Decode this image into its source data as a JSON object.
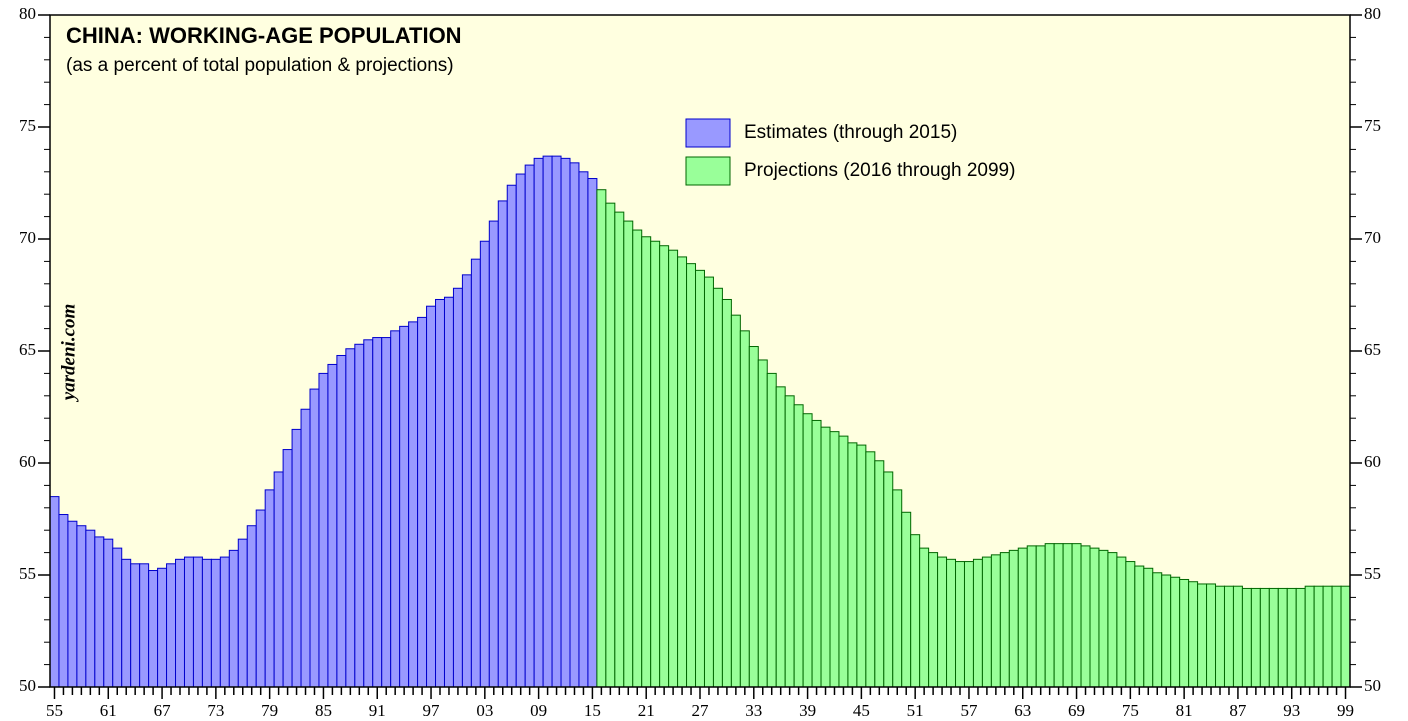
{
  "chart_data": {
    "type": "bar",
    "title": "CHINA: WORKING-AGE POPULATION",
    "subtitle": "(as a percent of total population & projections)",
    "annotation": "yardeni.com",
    "legend": "top-center",
    "categories": [
      "55",
      null,
      null,
      null,
      null,
      null,
      "61",
      null,
      null,
      null,
      null,
      null,
      "67",
      null,
      null,
      null,
      null,
      null,
      "73",
      null,
      null,
      null,
      null,
      null,
      "79",
      null,
      null,
      null,
      null,
      null,
      "85",
      null,
      null,
      null,
      null,
      null,
      "91",
      null,
      null,
      null,
      null,
      null,
      "97",
      null,
      null,
      null,
      null,
      null,
      "03",
      null,
      null,
      null,
      null,
      null,
      "09",
      null,
      null,
      null,
      null,
      null,
      "15",
      null,
      null,
      null,
      null,
      null,
      "21",
      null,
      null,
      null,
      null,
      null,
      "27",
      null,
      null,
      null,
      null,
      null,
      "33",
      null,
      null,
      null,
      null,
      null,
      "39",
      null,
      null,
      null,
      null,
      null,
      "45",
      null,
      null,
      null,
      null,
      null,
      "51",
      null,
      null,
      null,
      null,
      null,
      "57",
      null,
      null,
      null,
      null,
      null,
      "63",
      null,
      null,
      null,
      null,
      null,
      "69",
      null,
      null,
      null,
      null,
      null,
      "75",
      null,
      null,
      null,
      null,
      null,
      "81",
      null,
      null,
      null,
      null,
      null,
      "87",
      null,
      null,
      null,
      null,
      null,
      "93",
      null,
      null,
      null,
      null,
      null,
      "99"
    ],
    "series": [
      {
        "name": "Estimates (through 2015)",
        "color": "#9999ff",
        "stroke": "#0000cc",
        "values": [
          58.5,
          57.7,
          57.4,
          57.2,
          57.0,
          56.7,
          56.6,
          56.2,
          55.7,
          55.5,
          55.5,
          55.2,
          55.3,
          55.5,
          55.7,
          55.8,
          55.8,
          55.7,
          55.7,
          55.8,
          56.1,
          56.6,
          57.2,
          57.9,
          58.8,
          59.6,
          60.6,
          61.5,
          62.4,
          63.3,
          64.0,
          64.4,
          64.8,
          65.1,
          65.3,
          65.5,
          65.6,
          65.6,
          65.9,
          66.1,
          66.3,
          66.5,
          67.0,
          67.3,
          67.4,
          67.8,
          68.4,
          69.1,
          69.9,
          70.8,
          71.7,
          72.4,
          72.9,
          73.3,
          73.6,
          73.7,
          73.7,
          73.6,
          73.4,
          73.0,
          72.7,
          null,
          null,
          null,
          null,
          null,
          null,
          null,
          null,
          null,
          null,
          null,
          null,
          null,
          null,
          null,
          null,
          null,
          null,
          null,
          null,
          null,
          null,
          null,
          null,
          null,
          null,
          null,
          null,
          null,
          null,
          null,
          null,
          null,
          null,
          null,
          null,
          null,
          null,
          null,
          null,
          null,
          null,
          null,
          null,
          null,
          null,
          null,
          null,
          null,
          null,
          null,
          null,
          null,
          null,
          null,
          null,
          null,
          null,
          null,
          null,
          null,
          null,
          null,
          null,
          null,
          null,
          null,
          null,
          null,
          null,
          null,
          null,
          null,
          null,
          null,
          null,
          null,
          null,
          null,
          null,
          null,
          null,
          null,
          null
        ]
      },
      {
        "name": "Projections (2016 through 2099)",
        "color": "#99ff99",
        "stroke": "#006600",
        "values": [
          null,
          null,
          null,
          null,
          null,
          null,
          null,
          null,
          null,
          null,
          null,
          null,
          null,
          null,
          null,
          null,
          null,
          null,
          null,
          null,
          null,
          null,
          null,
          null,
          null,
          null,
          null,
          null,
          null,
          null,
          null,
          null,
          null,
          null,
          null,
          null,
          null,
          null,
          null,
          null,
          null,
          null,
          null,
          null,
          null,
          null,
          null,
          null,
          null,
          null,
          null,
          null,
          null,
          null,
          null,
          null,
          null,
          null,
          null,
          null,
          null,
          72.2,
          71.6,
          71.2,
          70.8,
          70.4,
          70.1,
          69.9,
          69.7,
          69.5,
          69.2,
          68.9,
          68.6,
          68.3,
          67.8,
          67.3,
          66.6,
          65.9,
          65.2,
          64.6,
          64.0,
          63.4,
          63.0,
          62.6,
          62.2,
          61.9,
          61.6,
          61.4,
          61.2,
          60.9,
          60.8,
          60.5,
          60.1,
          59.6,
          58.8,
          57.8,
          56.8,
          56.2,
          56.0,
          55.8,
          55.7,
          55.6,
          55.6,
          55.7,
          55.8,
          55.9,
          56.0,
          56.1,
          56.2,
          56.3,
          56.3,
          56.4,
          56.4,
          56.4,
          56.4,
          56.3,
          56.2,
          56.1,
          56.0,
          55.8,
          55.6,
          55.4,
          55.3,
          55.1,
          55.0,
          54.9,
          54.8,
          54.7,
          54.6,
          54.6,
          54.5,
          54.5,
          54.5,
          54.4,
          54.4,
          54.4,
          54.4,
          54.4,
          54.4,
          54.4,
          54.5,
          54.5,
          54.5,
          54.5,
          54.5
        ]
      }
    ],
    "ylim": [
      50,
      80
    ],
    "yticks": [
      50,
      55,
      60,
      65,
      70,
      75,
      80
    ],
    "background": "#ffffe0"
  }
}
